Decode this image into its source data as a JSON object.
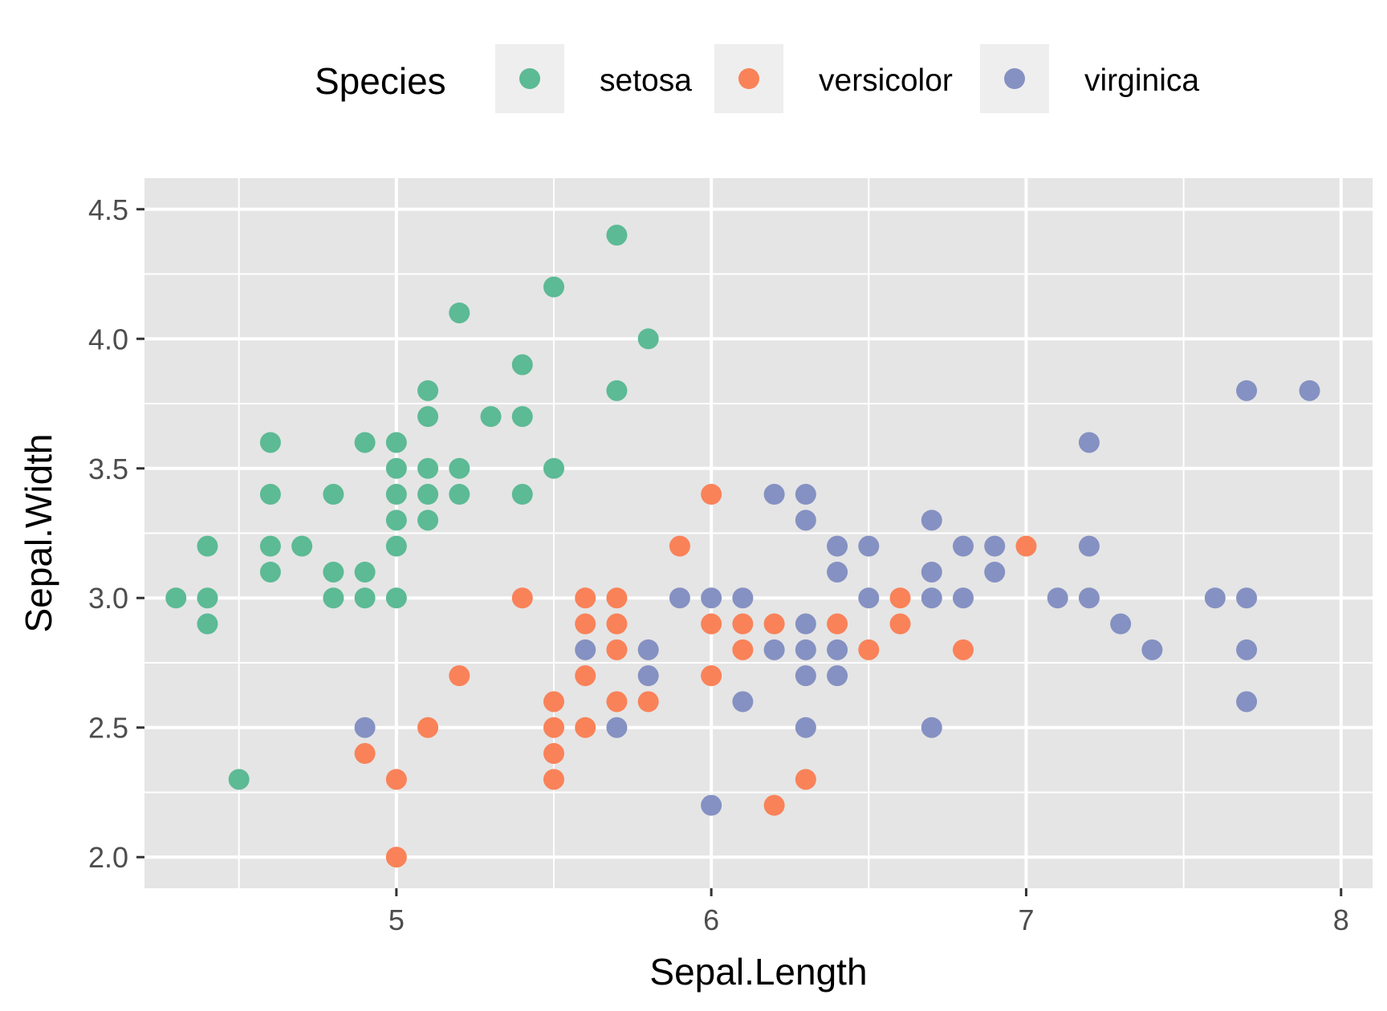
{
  "chart_data": {
    "type": "scatter",
    "xlabel": "Sepal.Length",
    "ylabel": "Sepal.Width",
    "xlim": [
      4.2,
      8.1
    ],
    "ylim": [
      1.88,
      4.62
    ],
    "x_ticks": [
      5,
      6,
      7,
      8
    ],
    "x_tick_labels": [
      "5",
      "6",
      "7",
      "8"
    ],
    "y_ticks": [
      2.0,
      2.5,
      3.0,
      3.5,
      4.0,
      4.5
    ],
    "y_tick_labels": [
      "2.0",
      "2.5",
      "3.0",
      "3.5",
      "4.0",
      "4.5"
    ],
    "grid": true,
    "legend": {
      "title": "Species",
      "position": "top"
    },
    "series": [
      {
        "name": "setosa",
        "color": "#5cba95",
        "points": [
          [
            4.3,
            3.0
          ],
          [
            4.4,
            3.2
          ],
          [
            4.4,
            3.0
          ],
          [
            4.4,
            2.9
          ],
          [
            4.5,
            2.3
          ],
          [
            4.6,
            3.6
          ],
          [
            4.6,
            3.4
          ],
          [
            4.6,
            3.2
          ],
          [
            4.6,
            3.1
          ],
          [
            4.7,
            3.2
          ],
          [
            4.8,
            3.4
          ],
          [
            4.8,
            3.1
          ],
          [
            4.8,
            3.0
          ],
          [
            4.9,
            3.6
          ],
          [
            4.9,
            3.1
          ],
          [
            4.9,
            3.0
          ],
          [
            5.0,
            3.6
          ],
          [
            5.0,
            3.5
          ],
          [
            5.0,
            3.4
          ],
          [
            5.0,
            3.3
          ],
          [
            5.0,
            3.2
          ],
          [
            5.0,
            3.0
          ],
          [
            5.1,
            3.8
          ],
          [
            5.1,
            3.7
          ],
          [
            5.1,
            3.5
          ],
          [
            5.1,
            3.4
          ],
          [
            5.1,
            3.3
          ],
          [
            5.2,
            4.1
          ],
          [
            5.2,
            3.5
          ],
          [
            5.2,
            3.4
          ],
          [
            5.3,
            3.7
          ],
          [
            5.4,
            3.9
          ],
          [
            5.4,
            3.7
          ],
          [
            5.4,
            3.4
          ],
          [
            5.5,
            4.2
          ],
          [
            5.5,
            3.5
          ],
          [
            5.7,
            4.4
          ],
          [
            5.7,
            3.8
          ],
          [
            5.8,
            4.0
          ]
        ]
      },
      {
        "name": "versicolor",
        "color": "#f98259",
        "points": [
          [
            4.9,
            2.4
          ],
          [
            5.0,
            2.3
          ],
          [
            5.0,
            2.0
          ],
          [
            5.1,
            2.5
          ],
          [
            5.2,
            2.7
          ],
          [
            5.4,
            3.0
          ],
          [
            5.5,
            2.6
          ],
          [
            5.5,
            2.5
          ],
          [
            5.5,
            2.4
          ],
          [
            5.5,
            2.3
          ],
          [
            5.6,
            3.0
          ],
          [
            5.6,
            2.9
          ],
          [
            5.6,
            2.7
          ],
          [
            5.6,
            2.5
          ],
          [
            5.7,
            3.0
          ],
          [
            5.7,
            2.9
          ],
          [
            5.7,
            2.8
          ],
          [
            5.7,
            2.6
          ],
          [
            5.8,
            2.6
          ],
          [
            5.9,
            3.2
          ],
          [
            6.0,
            3.4
          ],
          [
            6.0,
            2.9
          ],
          [
            6.0,
            2.7
          ],
          [
            6.1,
            2.9
          ],
          [
            6.1,
            2.8
          ],
          [
            6.2,
            2.9
          ],
          [
            6.2,
            2.2
          ],
          [
            6.3,
            2.3
          ],
          [
            6.4,
            2.9
          ],
          [
            6.5,
            2.8
          ],
          [
            6.6,
            3.0
          ],
          [
            6.6,
            2.9
          ],
          [
            6.8,
            2.8
          ],
          [
            7.0,
            3.2
          ]
        ]
      },
      {
        "name": "virginica",
        "color": "#8591c2",
        "points": [
          [
            4.9,
            2.5
          ],
          [
            5.6,
            2.8
          ],
          [
            5.7,
            2.5
          ],
          [
            5.8,
            2.8
          ],
          [
            5.8,
            2.7
          ],
          [
            5.9,
            3.0
          ],
          [
            6.0,
            3.0
          ],
          [
            6.0,
            2.2
          ],
          [
            6.1,
            3.0
          ],
          [
            6.1,
            2.6
          ],
          [
            6.2,
            3.4
          ],
          [
            6.2,
            2.8
          ],
          [
            6.3,
            3.4
          ],
          [
            6.3,
            3.3
          ],
          [
            6.3,
            2.9
          ],
          [
            6.3,
            2.8
          ],
          [
            6.3,
            2.7
          ],
          [
            6.3,
            2.5
          ],
          [
            6.4,
            3.2
          ],
          [
            6.4,
            3.1
          ],
          [
            6.4,
            2.8
          ],
          [
            6.4,
            2.7
          ],
          [
            6.5,
            3.2
          ],
          [
            6.5,
            3.0
          ],
          [
            6.7,
            3.3
          ],
          [
            6.7,
            3.1
          ],
          [
            6.7,
            3.0
          ],
          [
            6.7,
            2.5
          ],
          [
            6.8,
            3.2
          ],
          [
            6.8,
            3.0
          ],
          [
            6.9,
            3.2
          ],
          [
            6.9,
            3.1
          ],
          [
            7.1,
            3.0
          ],
          [
            7.2,
            3.6
          ],
          [
            7.2,
            3.2
          ],
          [
            7.2,
            3.0
          ],
          [
            7.3,
            2.9
          ],
          [
            7.4,
            2.8
          ],
          [
            7.6,
            3.0
          ],
          [
            7.7,
            3.8
          ],
          [
            7.7,
            3.0
          ],
          [
            7.7,
            2.8
          ],
          [
            7.7,
            2.6
          ],
          [
            7.9,
            3.8
          ]
        ]
      }
    ]
  }
}
